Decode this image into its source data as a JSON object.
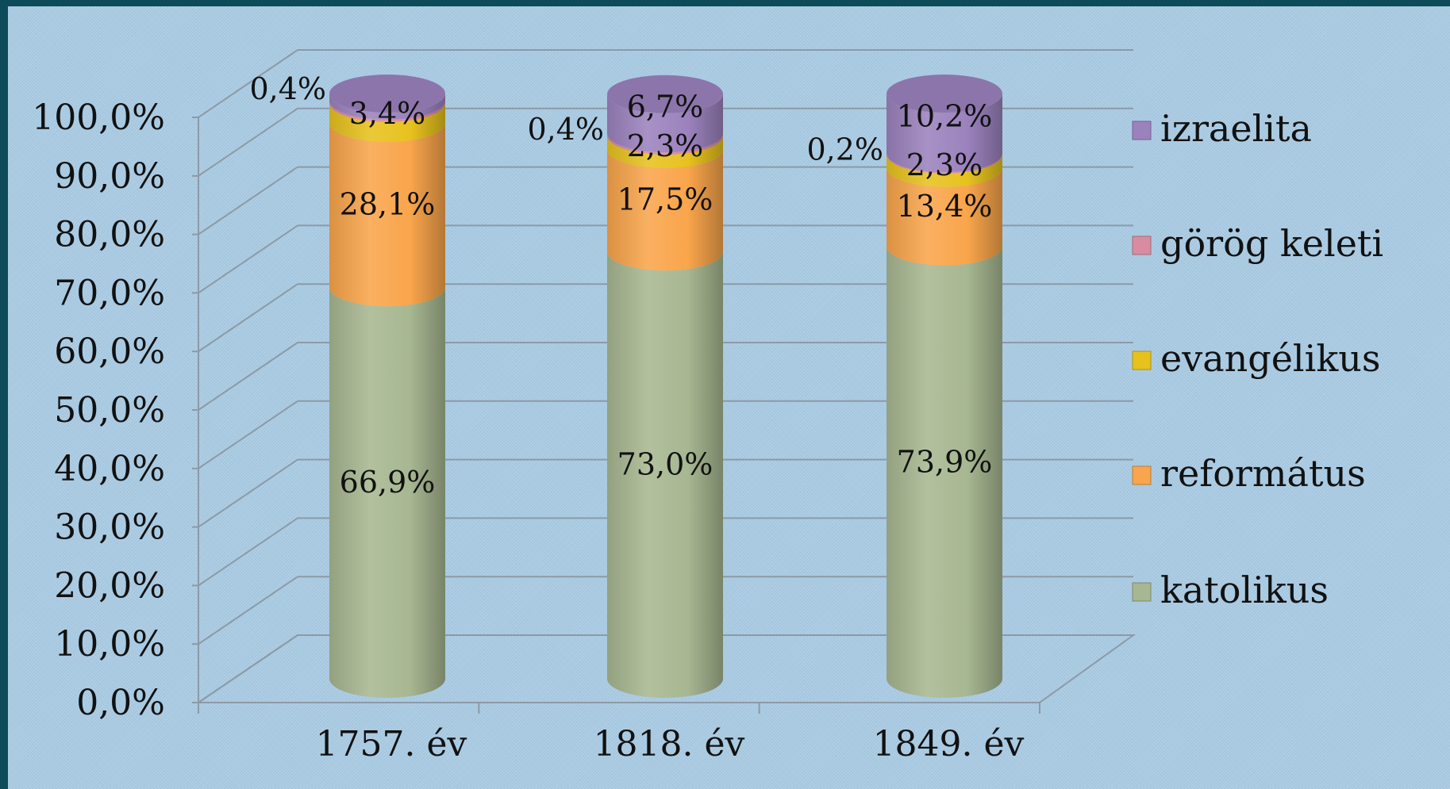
{
  "chart_data": {
    "type": "bar",
    "subtype": "stacked-100-percent-3d-cylinder",
    "categories": [
      "1757. év",
      "1818. év",
      "1849. év"
    ],
    "series": [
      {
        "name": "katolikus",
        "color": "#a7b791",
        "values": [
          66.9,
          73.0,
          73.9
        ],
        "labels": [
          "66,9%",
          "73,0%",
          "73,9%"
        ]
      },
      {
        "name": "református",
        "color": "#f9a54b",
        "values": [
          28.1,
          17.5,
          13.4
        ],
        "labels": [
          "28,1%",
          "17,5%",
          "13,4%"
        ]
      },
      {
        "name": "evangélikus",
        "color": "#e7c21e",
        "values": [
          3.4,
          2.3,
          2.3
        ],
        "labels": [
          "3,4%",
          "2,3%",
          "2,3%"
        ]
      },
      {
        "name": "görög keleti",
        "color": "#d98ba1",
        "values": [
          0.4,
          0.4,
          0.2
        ],
        "labels": [
          "0,4%",
          "0,4%",
          "0,2%"
        ]
      },
      {
        "name": "izraelita",
        "color": "#9b82bd",
        "values": [
          1.2,
          6.7,
          10.2
        ],
        "labels": [
          "",
          "6,7%",
          "10,2%"
        ]
      }
    ],
    "y_ticks": [
      "0,0%",
      "10,0%",
      "20,0%",
      "30,0%",
      "40,0%",
      "50,0%",
      "60,0%",
      "70,0%",
      "80,0%",
      "90,0%",
      "100,0%"
    ],
    "ylim": [
      0,
      100
    ],
    "grid": true,
    "legend_position": "right",
    "legend_order": [
      "izraelita",
      "görög keleti",
      "evangélikus",
      "református",
      "katolikus"
    ]
  }
}
